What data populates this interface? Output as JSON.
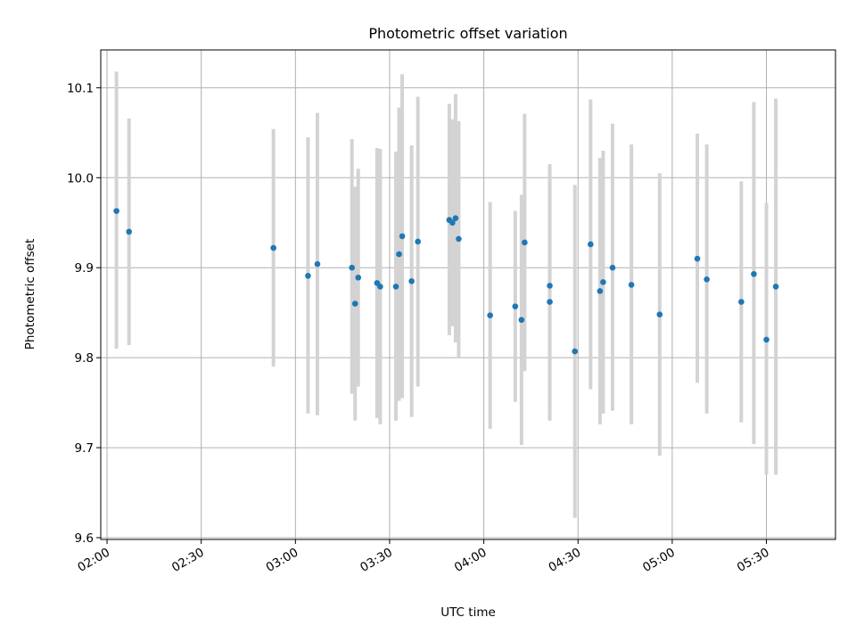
{
  "chart_data": {
    "type": "scatter",
    "title": "Photometric offset variation",
    "xlabel": "UTC time",
    "ylabel": "Photometric offset",
    "grid": true,
    "xlim": [
      "01:58",
      "05:52"
    ],
    "ylim": [
      9.598,
      10.142
    ],
    "x_ticks": [
      "02:00",
      "02:30",
      "03:00",
      "03:30",
      "04:00",
      "04:30",
      "05:00",
      "05:30"
    ],
    "y_ticks": [
      "9.6",
      "9.7",
      "9.8",
      "9.9",
      "10.0",
      "10.1"
    ],
    "colors": {
      "points": "#1f77b4",
      "errorbars": "#d3d3d3",
      "grid": "#b0b0b0"
    },
    "points": [
      {
        "x": "02:03",
        "y": 9.963,
        "ylow": 9.81,
        "yhigh": 10.118
      },
      {
        "x": "02:07",
        "y": 9.94,
        "ylow": 9.814,
        "yhigh": 10.066
      },
      {
        "x": "02:53",
        "y": 9.922,
        "ylow": 9.79,
        "yhigh": 10.054
      },
      {
        "x": "03:04",
        "y": 9.891,
        "ylow": 9.738,
        "yhigh": 10.045
      },
      {
        "x": "03:07",
        "y": 9.904,
        "ylow": 9.736,
        "yhigh": 10.072
      },
      {
        "x": "03:18",
        "y": 9.9,
        "ylow": 9.76,
        "yhigh": 10.043
      },
      {
        "x": "03:19",
        "y": 9.86,
        "ylow": 9.73,
        "yhigh": 9.99
      },
      {
        "x": "03:20",
        "y": 9.889,
        "ylow": 9.768,
        "yhigh": 10.01
      },
      {
        "x": "03:26",
        "y": 9.883,
        "ylow": 9.733,
        "yhigh": 10.033
      },
      {
        "x": "03:27",
        "y": 9.879,
        "ylow": 9.726,
        "yhigh": 10.032
      },
      {
        "x": "03:32",
        "y": 9.879,
        "ylow": 9.73,
        "yhigh": 10.029
      },
      {
        "x": "03:33",
        "y": 9.915,
        "ylow": 9.752,
        "yhigh": 10.078
      },
      {
        "x": "03:34",
        "y": 9.935,
        "ylow": 9.755,
        "yhigh": 10.115
      },
      {
        "x": "03:37",
        "y": 9.885,
        "ylow": 9.734,
        "yhigh": 10.036
      },
      {
        "x": "03:39",
        "y": 9.929,
        "ylow": 9.768,
        "yhigh": 10.09
      },
      {
        "x": "03:49",
        "y": 9.953,
        "ylow": 9.825,
        "yhigh": 10.082
      },
      {
        "x": "03:50",
        "y": 9.95,
        "ylow": 9.835,
        "yhigh": 10.065
      },
      {
        "x": "03:51",
        "y": 9.955,
        "ylow": 9.817,
        "yhigh": 10.093
      },
      {
        "x": "03:52",
        "y": 9.932,
        "ylow": 9.8,
        "yhigh": 10.063
      },
      {
        "x": "04:02",
        "y": 9.847,
        "ylow": 9.721,
        "yhigh": 9.973
      },
      {
        "x": "04:10",
        "y": 9.857,
        "ylow": 9.751,
        "yhigh": 9.963
      },
      {
        "x": "04:12",
        "y": 9.842,
        "ylow": 9.703,
        "yhigh": 9.981
      },
      {
        "x": "04:13",
        "y": 9.928,
        "ylow": 9.785,
        "yhigh": 10.071
      },
      {
        "x": "04:21",
        "y": 9.88,
        "ylow": 9.745,
        "yhigh": 10.015
      },
      {
        "x": "04:21",
        "y": 9.862,
        "ylow": 9.73,
        "yhigh": 9.995
      },
      {
        "x": "04:29",
        "y": 9.807,
        "ylow": 9.622,
        "yhigh": 9.992
      },
      {
        "x": "04:34",
        "y": 9.926,
        "ylow": 9.765,
        "yhigh": 10.087
      },
      {
        "x": "04:37",
        "y": 9.874,
        "ylow": 9.726,
        "yhigh": 10.022
      },
      {
        "x": "04:38",
        "y": 9.884,
        "ylow": 9.738,
        "yhigh": 10.03
      },
      {
        "x": "04:41",
        "y": 9.9,
        "ylow": 9.741,
        "yhigh": 10.06
      },
      {
        "x": "04:47",
        "y": 9.881,
        "ylow": 9.726,
        "yhigh": 10.037
      },
      {
        "x": "04:56",
        "y": 9.848,
        "ylow": 9.691,
        "yhigh": 10.005
      },
      {
        "x": "05:08",
        "y": 9.91,
        "ylow": 9.772,
        "yhigh": 10.049
      },
      {
        "x": "05:11",
        "y": 9.887,
        "ylow": 9.738,
        "yhigh": 10.037
      },
      {
        "x": "05:22",
        "y": 9.862,
        "ylow": 9.728,
        "yhigh": 9.996
      },
      {
        "x": "05:26",
        "y": 9.893,
        "ylow": 9.704,
        "yhigh": 10.084
      },
      {
        "x": "05:30",
        "y": 9.82,
        "ylow": 9.67,
        "yhigh": 9.972
      },
      {
        "x": "05:33",
        "y": 9.879,
        "ylow": 9.67,
        "yhigh": 10.088
      }
    ]
  }
}
